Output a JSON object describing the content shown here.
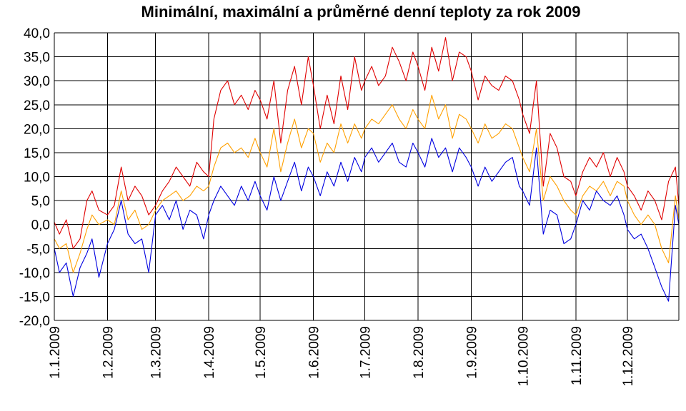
{
  "chart_data": {
    "type": "line",
    "title": "Minimální, maximální a průměrné denní teploty za rok 2009",
    "xlabel": "",
    "ylabel": "",
    "ylim": [
      -20,
      40
    ],
    "ytick_step": 5,
    "ytick_labels": [
      "40,0",
      "35,0",
      "30,0",
      "25,0",
      "20,0",
      "15,0",
      "10,0",
      "5,0",
      "0,0",
      "-5,0",
      "-10,0",
      "-15,0",
      "-20,0"
    ],
    "xlim": [
      "2009-01-01",
      "2009-12-31"
    ],
    "xtick_labels": [
      "1.1.2009",
      "1.2.2009",
      "1.3.2009",
      "1.4.2009",
      "1.5.2009",
      "1.6.2009",
      "1.7.2009",
      "1.8.2009",
      "1.9.2009",
      "1.10.2009",
      "1.11.2009",
      "1.12.2009"
    ],
    "xtick_dates": [
      "2009-01-01",
      "2009-02-01",
      "2009-03-01",
      "2009-04-01",
      "2009-05-01",
      "2009-06-01",
      "2009-07-01",
      "2009-08-01",
      "2009-09-01",
      "2009-10-01",
      "2009-11-01",
      "2009-12-01"
    ],
    "grid": true,
    "legend": "none",
    "series": [
      {
        "color": "#e00000",
        "x": [
          "2009-01-01",
          "2009-01-04",
          "2009-01-08",
          "2009-01-12",
          "2009-01-16",
          "2009-01-20",
          "2009-01-23",
          "2009-01-27",
          "2009-02-01",
          "2009-02-05",
          "2009-02-09",
          "2009-02-13",
          "2009-02-17",
          "2009-02-21",
          "2009-02-25",
          "2009-03-01",
          "2009-03-05",
          "2009-03-09",
          "2009-03-13",
          "2009-03-17",
          "2009-03-21",
          "2009-03-25",
          "2009-03-29",
          "2009-04-01",
          "2009-04-04",
          "2009-04-08",
          "2009-04-12",
          "2009-04-16",
          "2009-04-20",
          "2009-04-24",
          "2009-04-28",
          "2009-05-01",
          "2009-05-05",
          "2009-05-09",
          "2009-05-13",
          "2009-05-17",
          "2009-05-21",
          "2009-05-25",
          "2009-05-29",
          "2009-06-01",
          "2009-06-05",
          "2009-06-09",
          "2009-06-13",
          "2009-06-17",
          "2009-06-21",
          "2009-06-25",
          "2009-06-29",
          "2009-07-01",
          "2009-07-05",
          "2009-07-09",
          "2009-07-13",
          "2009-07-17",
          "2009-07-21",
          "2009-07-25",
          "2009-07-29",
          "2009-08-01",
          "2009-08-05",
          "2009-08-09",
          "2009-08-13",
          "2009-08-17",
          "2009-08-21",
          "2009-08-25",
          "2009-08-29",
          "2009-09-01",
          "2009-09-05",
          "2009-09-09",
          "2009-09-13",
          "2009-09-17",
          "2009-09-21",
          "2009-09-25",
          "2009-09-29",
          "2009-10-01",
          "2009-10-05",
          "2009-10-09",
          "2009-10-13",
          "2009-10-17",
          "2009-10-21",
          "2009-10-25",
          "2009-10-29",
          "2009-11-01",
          "2009-11-05",
          "2009-11-09",
          "2009-11-13",
          "2009-11-17",
          "2009-11-21",
          "2009-11-25",
          "2009-11-29",
          "2009-12-01",
          "2009-12-05",
          "2009-12-09",
          "2009-12-13",
          "2009-12-17",
          "2009-12-21",
          "2009-12-25",
          "2009-12-29",
          "2009-12-31"
        ],
        "values": [
          0.5,
          -2,
          1,
          -5,
          -3,
          5,
          7,
          3,
          2,
          4,
          12,
          5,
          8,
          6,
          2,
          4,
          7,
          9,
          12,
          10,
          8,
          13,
          11,
          10,
          22,
          28,
          30,
          25,
          27,
          24,
          28,
          26,
          22,
          30,
          17,
          28,
          33,
          25,
          35,
          29,
          20,
          27,
          21,
          31,
          24,
          35,
          28,
          30,
          33,
          29,
          31,
          37,
          34,
          30,
          36,
          33,
          28,
          37,
          32,
          39,
          30,
          36,
          35,
          32,
          26,
          31,
          29,
          28,
          31,
          30,
          26,
          23,
          19,
          30,
          8,
          19,
          16,
          10,
          9,
          6,
          11,
          14,
          12,
          15,
          10,
          14,
          11,
          8,
          6,
          3,
          7,
          5,
          1,
          9,
          12,
          4
        ],
        "name": ""
      },
      {
        "color": "#ffa000",
        "x": [
          "2009-01-01",
          "2009-01-04",
          "2009-01-08",
          "2009-01-12",
          "2009-01-16",
          "2009-01-20",
          "2009-01-23",
          "2009-01-27",
          "2009-02-01",
          "2009-02-05",
          "2009-02-09",
          "2009-02-13",
          "2009-02-17",
          "2009-02-21",
          "2009-02-25",
          "2009-03-01",
          "2009-03-05",
          "2009-03-09",
          "2009-03-13",
          "2009-03-17",
          "2009-03-21",
          "2009-03-25",
          "2009-03-29",
          "2009-04-01",
          "2009-04-04",
          "2009-04-08",
          "2009-04-12",
          "2009-04-16",
          "2009-04-20",
          "2009-04-24",
          "2009-04-28",
          "2009-05-01",
          "2009-05-05",
          "2009-05-09",
          "2009-05-13",
          "2009-05-17",
          "2009-05-21",
          "2009-05-25",
          "2009-05-29",
          "2009-06-01",
          "2009-06-05",
          "2009-06-09",
          "2009-06-13",
          "2009-06-17",
          "2009-06-21",
          "2009-06-25",
          "2009-06-29",
          "2009-07-01",
          "2009-07-05",
          "2009-07-09",
          "2009-07-13",
          "2009-07-17",
          "2009-07-21",
          "2009-07-25",
          "2009-07-29",
          "2009-08-01",
          "2009-08-05",
          "2009-08-09",
          "2009-08-13",
          "2009-08-17",
          "2009-08-21",
          "2009-08-25",
          "2009-08-29",
          "2009-09-01",
          "2009-09-05",
          "2009-09-09",
          "2009-09-13",
          "2009-09-17",
          "2009-09-21",
          "2009-09-25",
          "2009-09-29",
          "2009-10-01",
          "2009-10-05",
          "2009-10-09",
          "2009-10-13",
          "2009-10-17",
          "2009-10-21",
          "2009-10-25",
          "2009-10-29",
          "2009-11-01",
          "2009-11-05",
          "2009-11-09",
          "2009-11-13",
          "2009-11-17",
          "2009-11-21",
          "2009-11-25",
          "2009-11-29",
          "2009-12-01",
          "2009-12-05",
          "2009-12-09",
          "2009-12-13",
          "2009-12-17",
          "2009-12-21",
          "2009-12-25",
          "2009-12-29",
          "2009-12-31"
        ],
        "values": [
          -3,
          -5,
          -4,
          -10,
          -6,
          -1,
          2,
          0,
          1,
          0,
          7,
          1,
          3,
          -1,
          0,
          3,
          5,
          6,
          7,
          5,
          6,
          8,
          7,
          8,
          12,
          16,
          17,
          15,
          16,
          14,
          18,
          15,
          12,
          20,
          11,
          17,
          22,
          16,
          20,
          19,
          13,
          17,
          15,
          21,
          17,
          21,
          18,
          20,
          22,
          21,
          23,
          25,
          22,
          20,
          24,
          22,
          20,
          27,
          22,
          25,
          18,
          23,
          22,
          20,
          17,
          21,
          18,
          19,
          21,
          20,
          16,
          14,
          11,
          20,
          5,
          10,
          8,
          5,
          3,
          2,
          6,
          8,
          7,
          9,
          6,
          9,
          8,
          5,
          2,
          0,
          2,
          0,
          -5,
          -8,
          6,
          1
        ],
        "name": ""
      },
      {
        "color": "#0000e0",
        "x": [
          "2009-01-01",
          "2009-01-04",
          "2009-01-08",
          "2009-01-12",
          "2009-01-16",
          "2009-01-20",
          "2009-01-23",
          "2009-01-27",
          "2009-02-01",
          "2009-02-05",
          "2009-02-09",
          "2009-02-13",
          "2009-02-17",
          "2009-02-21",
          "2009-02-25",
          "2009-03-01",
          "2009-03-05",
          "2009-03-09",
          "2009-03-13",
          "2009-03-17",
          "2009-03-21",
          "2009-03-25",
          "2009-03-29",
          "2009-04-01",
          "2009-04-04",
          "2009-04-08",
          "2009-04-12",
          "2009-04-16",
          "2009-04-20",
          "2009-04-24",
          "2009-04-28",
          "2009-05-01",
          "2009-05-05",
          "2009-05-09",
          "2009-05-13",
          "2009-05-17",
          "2009-05-21",
          "2009-05-25",
          "2009-05-29",
          "2009-06-01",
          "2009-06-05",
          "2009-06-09",
          "2009-06-13",
          "2009-06-17",
          "2009-06-21",
          "2009-06-25",
          "2009-06-29",
          "2009-07-01",
          "2009-07-05",
          "2009-07-09",
          "2009-07-13",
          "2009-07-17",
          "2009-07-21",
          "2009-07-25",
          "2009-07-29",
          "2009-08-01",
          "2009-08-05",
          "2009-08-09",
          "2009-08-13",
          "2009-08-17",
          "2009-08-21",
          "2009-08-25",
          "2009-08-29",
          "2009-09-01",
          "2009-09-05",
          "2009-09-09",
          "2009-09-13",
          "2009-09-17",
          "2009-09-21",
          "2009-09-25",
          "2009-09-29",
          "2009-10-01",
          "2009-10-05",
          "2009-10-09",
          "2009-10-13",
          "2009-10-17",
          "2009-10-21",
          "2009-10-25",
          "2009-10-29",
          "2009-11-01",
          "2009-11-05",
          "2009-11-09",
          "2009-11-13",
          "2009-11-17",
          "2009-11-21",
          "2009-11-25",
          "2009-11-29",
          "2009-12-01",
          "2009-12-05",
          "2009-12-09",
          "2009-12-13",
          "2009-12-17",
          "2009-12-21",
          "2009-12-25",
          "2009-12-29",
          "2009-12-31"
        ],
        "values": [
          -5,
          -10,
          -8,
          -15,
          -9,
          -6,
          -3,
          -11,
          -4,
          -1,
          5,
          -2,
          -4,
          -3,
          -10,
          2,
          4,
          1,
          5,
          -1,
          3,
          2,
          -3,
          2,
          5,
          8,
          6,
          4,
          8,
          5,
          9,
          6,
          3,
          10,
          5,
          9,
          13,
          7,
          12,
          10,
          6,
          11,
          8,
          13,
          9,
          14,
          11,
          14,
          16,
          13,
          15,
          17,
          13,
          12,
          17,
          15,
          12,
          18,
          14,
          16,
          11,
          16,
          14,
          12,
          8,
          12,
          9,
          11,
          13,
          14,
          8,
          7,
          4,
          16,
          -2,
          3,
          2,
          -4,
          -3,
          0,
          5,
          3,
          7,
          5,
          4,
          6,
          2,
          -1,
          -3,
          -2,
          -5,
          -9,
          -13,
          -16,
          4,
          0
        ],
        "name": ""
      }
    ]
  }
}
